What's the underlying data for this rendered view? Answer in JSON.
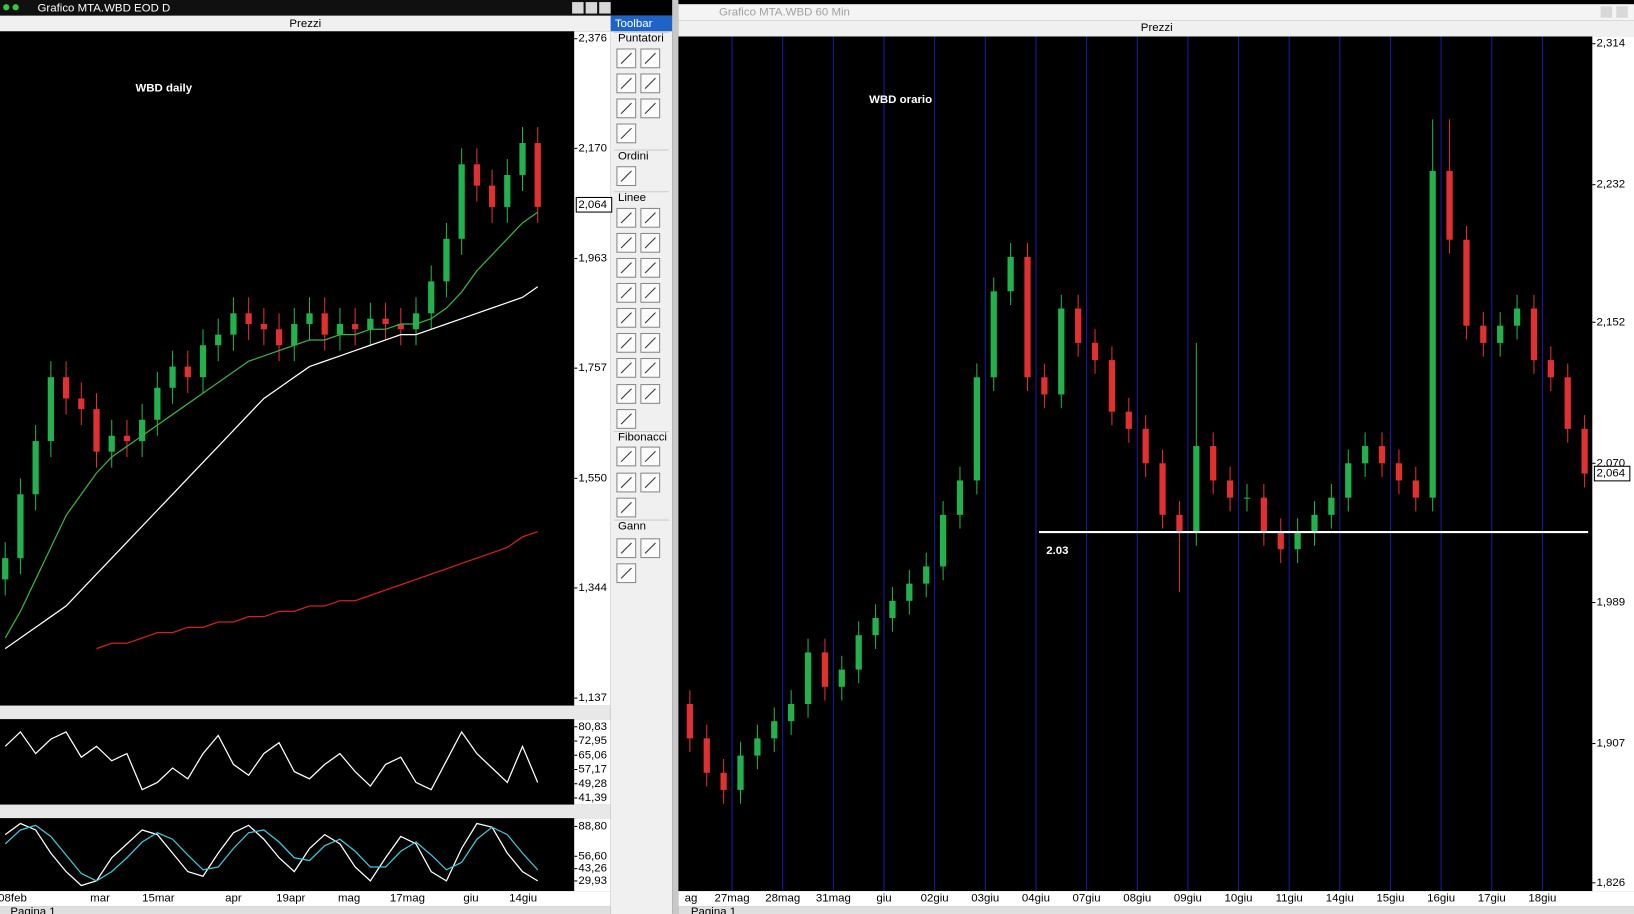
{
  "left_window": {
    "title": "Grafico MTA.WBD EOD D",
    "panel": "Prezzi",
    "annotation": "WBD daily",
    "tab": "Pagina 1",
    "chart_data": {
      "type": "candlestick",
      "up_color": "#22b14c",
      "down_color": "#e03030",
      "open": [
        1.36,
        1.4,
        1.52,
        1.62,
        1.74,
        1.7,
        1.68,
        1.6,
        1.63,
        1.62,
        1.66,
        1.72,
        1.76,
        1.74,
        1.8,
        1.82,
        1.86,
        1.84,
        1.83,
        1.8,
        1.84,
        1.86,
        1.82,
        1.84,
        1.83,
        1.85,
        1.84,
        1.83,
        1.86,
        1.92,
        2.0,
        2.14,
        2.1,
        2.06,
        2.12,
        2.18
      ],
      "high": [
        1.43,
        1.55,
        1.65,
        1.77,
        1.77,
        1.73,
        1.71,
        1.66,
        1.66,
        1.69,
        1.75,
        1.79,
        1.79,
        1.83,
        1.85,
        1.89,
        1.89,
        1.87,
        1.86,
        1.87,
        1.89,
        1.89,
        1.87,
        1.87,
        1.88,
        1.88,
        1.87,
        1.89,
        1.95,
        2.03,
        2.17,
        2.17,
        2.13,
        2.15,
        2.21,
        2.21
      ],
      "low": [
        1.33,
        1.37,
        1.49,
        1.59,
        1.67,
        1.65,
        1.57,
        1.57,
        1.59,
        1.59,
        1.63,
        1.69,
        1.71,
        1.71,
        1.77,
        1.79,
        1.81,
        1.8,
        1.77,
        1.77,
        1.81,
        1.79,
        1.79,
        1.8,
        1.8,
        1.81,
        1.8,
        1.8,
        1.83,
        1.89,
        1.97,
        2.07,
        2.03,
        2.03,
        2.09,
        2.03
      ],
      "close": [
        1.4,
        1.52,
        1.62,
        1.74,
        1.7,
        1.68,
        1.6,
        1.63,
        1.62,
        1.66,
        1.72,
        1.76,
        1.74,
        1.8,
        1.82,
        1.86,
        1.84,
        1.83,
        1.8,
        1.84,
        1.86,
        1.82,
        1.84,
        1.83,
        1.85,
        1.84,
        1.83,
        1.86,
        1.92,
        2.0,
        2.14,
        2.1,
        2.06,
        2.12,
        2.18,
        2.06
      ],
      "overlays": [
        {
          "color": "#3cb043",
          "values": [
            1.25,
            1.3,
            1.36,
            1.42,
            1.48,
            1.52,
            1.56,
            1.59,
            1.61,
            1.63,
            1.65,
            1.67,
            1.69,
            1.71,
            1.73,
            1.75,
            1.77,
            1.78,
            1.79,
            1.8,
            1.81,
            1.81,
            1.82,
            1.82,
            1.83,
            1.83,
            1.84,
            1.84,
            1.85,
            1.87,
            1.9,
            1.94,
            1.97,
            2.0,
            2.03,
            2.05
          ]
        },
        {
          "color": "#ffffff",
          "values": [
            1.23,
            1.25,
            1.27,
            1.29,
            1.31,
            1.34,
            1.37,
            1.4,
            1.43,
            1.46,
            1.49,
            1.52,
            1.55,
            1.58,
            1.61,
            1.64,
            1.67,
            1.7,
            1.72,
            1.74,
            1.76,
            1.77,
            1.78,
            1.79,
            1.8,
            1.81,
            1.82,
            1.82,
            1.83,
            1.84,
            1.85,
            1.86,
            1.87,
            1.88,
            1.89,
            1.91
          ]
        },
        {
          "color": "#d42020",
          "values": [
            null,
            null,
            null,
            null,
            null,
            null,
            1.23,
            1.24,
            1.24,
            1.25,
            1.26,
            1.26,
            1.27,
            1.27,
            1.28,
            1.28,
            1.29,
            1.29,
            1.3,
            1.3,
            1.31,
            1.31,
            1.32,
            1.32,
            1.33,
            1.34,
            1.35,
            1.36,
            1.37,
            1.38,
            1.39,
            1.4,
            1.41,
            1.42,
            1.44,
            1.45
          ]
        }
      ],
      "ylim": [
        1.123,
        2.39
      ],
      "yticks": [
        {
          "value": 2.376,
          "label": "2,376"
        },
        {
          "value": 2.17,
          "label": "2,170"
        },
        {
          "value": 1.963,
          "label": "1,963"
        },
        {
          "value": 1.757,
          "label": "1,757"
        },
        {
          "value": 1.55,
          "label": "1,550"
        },
        {
          "value": 1.344,
          "label": "1,344"
        },
        {
          "value": 1.137,
          "label": "1,137"
        }
      ],
      "last_price": {
        "value": 2.064,
        "label": "2,064"
      },
      "xlabels": [
        "08feb",
        "mar",
        "15mar",
        "apr",
        "19apr",
        "mag",
        "17mag",
        "giu",
        "14giu"
      ]
    },
    "oscillator1": {
      "type": "line",
      "series": [
        {
          "color": "#ffffff",
          "values": [
            70,
            78,
            66,
            74,
            78,
            64,
            70,
            62,
            66,
            46,
            50,
            58,
            52,
            66,
            76,
            60,
            54,
            66,
            72,
            56,
            52,
            60,
            66,
            56,
            48,
            60,
            64,
            50,
            46,
            62,
            78,
            66,
            58,
            50,
            70,
            50
          ]
        }
      ],
      "ylim": [
        37.75,
        85.08
      ],
      "yticks": [
        {
          "value": 80.83,
          "label": "80,83"
        },
        {
          "value": 72.95,
          "label": "72,95"
        },
        {
          "value": 65.06,
          "label": "65,06"
        },
        {
          "value": 57.17,
          "label": "57,17"
        },
        {
          "value": 49.28,
          "label": "49,28"
        },
        {
          "value": 41.39,
          "label": "41,39"
        }
      ]
    },
    "oscillator2": {
      "type": "line",
      "series": [
        {
          "color": "#ffffff",
          "values": [
            80,
            92,
            85,
            60,
            40,
            25,
            30,
            55,
            70,
            85,
            80,
            60,
            40,
            35,
            60,
            82,
            90,
            75,
            55,
            40,
            65,
            80,
            70,
            45,
            30,
            55,
            78,
            70,
            40,
            30,
            65,
            92,
            88,
            60,
            40,
            30
          ]
        },
        {
          "color": "#3fc7d8",
          "values": [
            70,
            85,
            90,
            78,
            58,
            38,
            30,
            40,
            55,
            72,
            82,
            75,
            58,
            42,
            45,
            65,
            82,
            85,
            72,
            55,
            52,
            68,
            75,
            62,
            45,
            45,
            62,
            72,
            58,
            42,
            50,
            75,
            88,
            80,
            60,
            42
          ]
        }
      ],
      "ylim": [
        19.0,
        97.8
      ],
      "yticks": [
        {
          "value": 88.8,
          "label": "88,80"
        },
        {
          "value": 56.6,
          "label": "56,60"
        },
        {
          "value": 43.26,
          "label": "43,26"
        },
        {
          "value": 29.93,
          "label": "29,93"
        }
      ]
    }
  },
  "toolbar": {
    "title": "Toolbar",
    "sections": [
      "Puntatori",
      "Ordini",
      "Linee",
      "Fibonacci",
      "Gann"
    ]
  },
  "right_window": {
    "title": "Grafico MTA.WBD 60 Min",
    "panel": "Prezzi",
    "annotation": "WBD orario",
    "tab": "Pagina 1",
    "chart_data": {
      "type": "candlestick",
      "up_color": "#22b14c",
      "down_color": "#e03030",
      "open": [
        1.93,
        1.91,
        1.89,
        1.88,
        1.9,
        1.91,
        1.92,
        1.93,
        1.96,
        1.94,
        1.95,
        1.97,
        1.98,
        1.99,
        2.0,
        2.01,
        2.04,
        2.06,
        2.12,
        2.17,
        2.19,
        2.12,
        2.11,
        2.16,
        2.14,
        2.13,
        2.1,
        2.09,
        2.07,
        2.04,
        2.03,
        2.08,
        2.06,
        2.05,
        2.05,
        2.03,
        2.02,
        2.03,
        2.04,
        2.05,
        2.07,
        2.08,
        2.07,
        2.06,
        2.05,
        2.24,
        2.2,
        2.15,
        2.14,
        2.15,
        2.16,
        2.13,
        2.12,
        2.09
      ],
      "high": [
        1.938,
        1.918,
        1.898,
        1.908,
        1.918,
        1.928,
        1.938,
        1.968,
        1.968,
        1.958,
        1.978,
        1.988,
        1.998,
        2.008,
        2.018,
        2.048,
        2.068,
        2.128,
        2.178,
        2.198,
        2.198,
        2.128,
        2.168,
        2.168,
        2.148,
        2.138,
        2.108,
        2.098,
        2.078,
        2.048,
        2.14,
        2.088,
        2.068,
        2.058,
        2.058,
        2.038,
        2.038,
        2.048,
        2.058,
        2.078,
        2.088,
        2.088,
        2.078,
        2.068,
        2.27,
        2.27,
        2.208,
        2.158,
        2.158,
        2.168,
        2.168,
        2.138,
        2.128,
        2.098
      ],
      "low": [
        1.902,
        1.882,
        1.872,
        1.872,
        1.892,
        1.902,
        1.912,
        1.922,
        1.932,
        1.932,
        1.942,
        1.962,
        1.972,
        1.982,
        1.992,
        2.002,
        2.032,
        2.052,
        2.112,
        2.162,
        2.112,
        2.102,
        2.102,
        2.132,
        2.122,
        2.092,
        2.082,
        2.062,
        2.032,
        1.995,
        2.022,
        2.052,
        2.042,
        2.042,
        2.022,
        2.012,
        2.012,
        2.022,
        2.032,
        2.042,
        2.062,
        2.062,
        2.052,
        2.042,
        2.042,
        2.192,
        2.142,
        2.132,
        2.132,
        2.142,
        2.122,
        2.112,
        2.082,
        2.056
      ],
      "close": [
        1.91,
        1.89,
        1.88,
        1.9,
        1.91,
        1.92,
        1.93,
        1.96,
        1.94,
        1.95,
        1.97,
        1.98,
        1.99,
        2.0,
        2.01,
        2.04,
        2.06,
        2.12,
        2.17,
        2.19,
        2.12,
        2.11,
        2.16,
        2.14,
        2.13,
        2.1,
        2.09,
        2.07,
        2.04,
        2.03,
        2.08,
        2.06,
        2.05,
        2.05,
        2.03,
        2.02,
        2.03,
        2.04,
        2.05,
        2.07,
        2.08,
        2.07,
        2.06,
        2.05,
        2.24,
        2.2,
        2.15,
        2.14,
        2.15,
        2.16,
        2.13,
        2.12,
        2.09,
        2.064
      ],
      "ylim": [
        1.8212,
        2.3182
      ],
      "yticks": [
        {
          "value": 2.314,
          "label": "2,314"
        },
        {
          "value": 2.232,
          "label": "2,232"
        },
        {
          "value": 2.152,
          "label": "2,152"
        },
        {
          "value": 2.07,
          "label": "2,070"
        },
        {
          "value": 1.989,
          "label": "1,989"
        },
        {
          "value": 1.907,
          "label": "1,907"
        },
        {
          "value": 1.826,
          "label": "1,826"
        }
      ],
      "last_price": {
        "value": 2.064,
        "label": "2,064"
      },
      "hline": {
        "value": 2.03,
        "label": "2.03",
        "color": "#ffffff"
      },
      "xlabels": [
        "ag",
        "27mag",
        "28mag",
        "31mag",
        "giu",
        "02giu",
        "03giu",
        "04giu",
        "07giu",
        "08giu",
        "09giu",
        "10giu",
        "11giu",
        "14giu",
        "15giu",
        "16giu",
        "17giu",
        "18giu"
      ]
    }
  }
}
